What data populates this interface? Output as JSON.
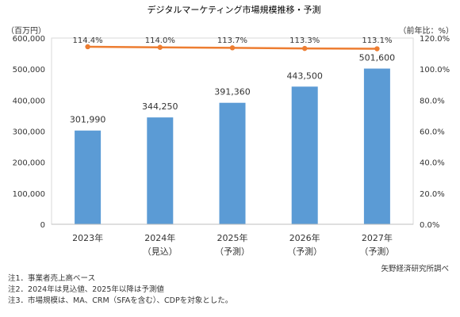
{
  "chart_data": {
    "type": "bar",
    "title": "デジタルマーケティング市場規模推移・予測",
    "categories": [
      "2023年",
      "2024年",
      "2025年",
      "2026年",
      "2027年"
    ],
    "category_sublabels": [
      "",
      "（見込）",
      "（予測）",
      "（予測）",
      "（予測）"
    ],
    "y_left_label": "（百万円）",
    "y_right_label": "（前年比：%）",
    "ylim_left": [
      0,
      600000
    ],
    "yticks_left": [
      "0",
      "100,000",
      "200,000",
      "300,000",
      "400,000",
      "500,000",
      "600,000"
    ],
    "ylim_right": [
      0,
      120
    ],
    "yticks_right": [
      "0.0%",
      "20.0%",
      "40.0%",
      "60.0%",
      "80.0%",
      "100.0%",
      "120.0%"
    ],
    "series": [
      {
        "type": "bar",
        "values": [
          301990,
          344250,
          391360,
          443500,
          501600
        ],
        "value_labels": [
          "301,990",
          "344,250",
          "391,360",
          "443,500",
          "501,600"
        ],
        "color": "#5B9BD5"
      },
      {
        "type": "line",
        "axis": "right",
        "values": [
          114.4,
          114.0,
          113.7,
          113.3,
          113.1
        ],
        "value_labels": [
          "114.4%",
          "114.0%",
          "113.7%",
          "113.3%",
          "113.1%"
        ],
        "color": "#ED7D31"
      }
    ],
    "grid": false,
    "legend": "none"
  },
  "source": "矢野経済研究所調べ",
  "notes": [
    "注1．事業者売上高ベース",
    "注2．2024年は見込値、2025年以降は予測値",
    "注3．市場規模は、MA、CRM（SFAを含む）、CDPを対象とした。"
  ]
}
